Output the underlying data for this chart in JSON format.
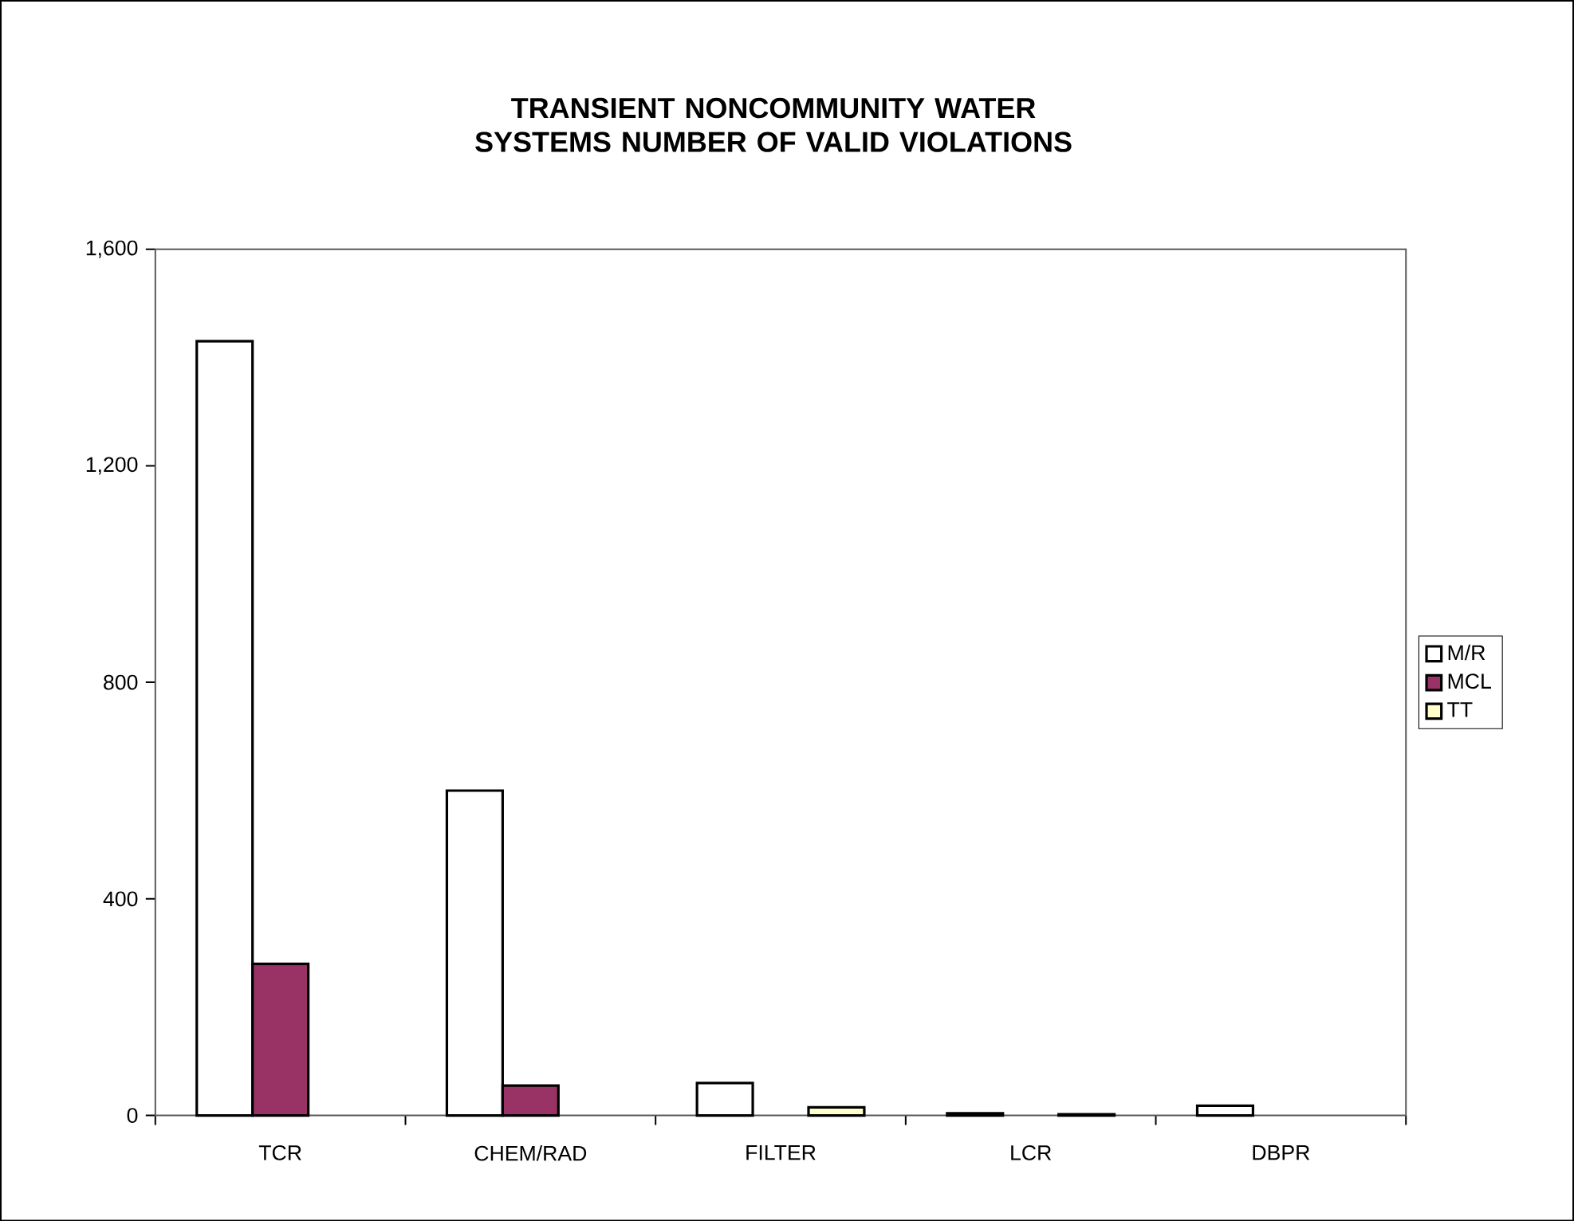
{
  "chart_data": {
    "type": "bar",
    "title": "TRANSIENT NONCOMMUNITY WATER SYSTEMS NUMBER OF VALID VIOLATIONS",
    "categories": [
      "TCR",
      "CHEM/RAD",
      "FILTER",
      "LCR",
      "DBPR"
    ],
    "series": [
      {
        "name": "M/R",
        "color": "#ffffff",
        "values": [
          1430,
          600,
          60,
          4,
          18
        ]
      },
      {
        "name": "MCL",
        "color": "#993366",
        "values": [
          280,
          55,
          null,
          null,
          null
        ]
      },
      {
        "name": "TT",
        "color": "#ffffcc",
        "values": [
          null,
          null,
          15,
          2,
          null
        ]
      }
    ],
    "ylim": [
      0,
      1600
    ],
    "yticks": [
      0,
      400,
      800,
      {
        "value": 1200,
        "label": "1,200"
      },
      {
        "value": 1600,
        "label": "1,600"
      }
    ],
    "grid": false,
    "legend": "right"
  }
}
